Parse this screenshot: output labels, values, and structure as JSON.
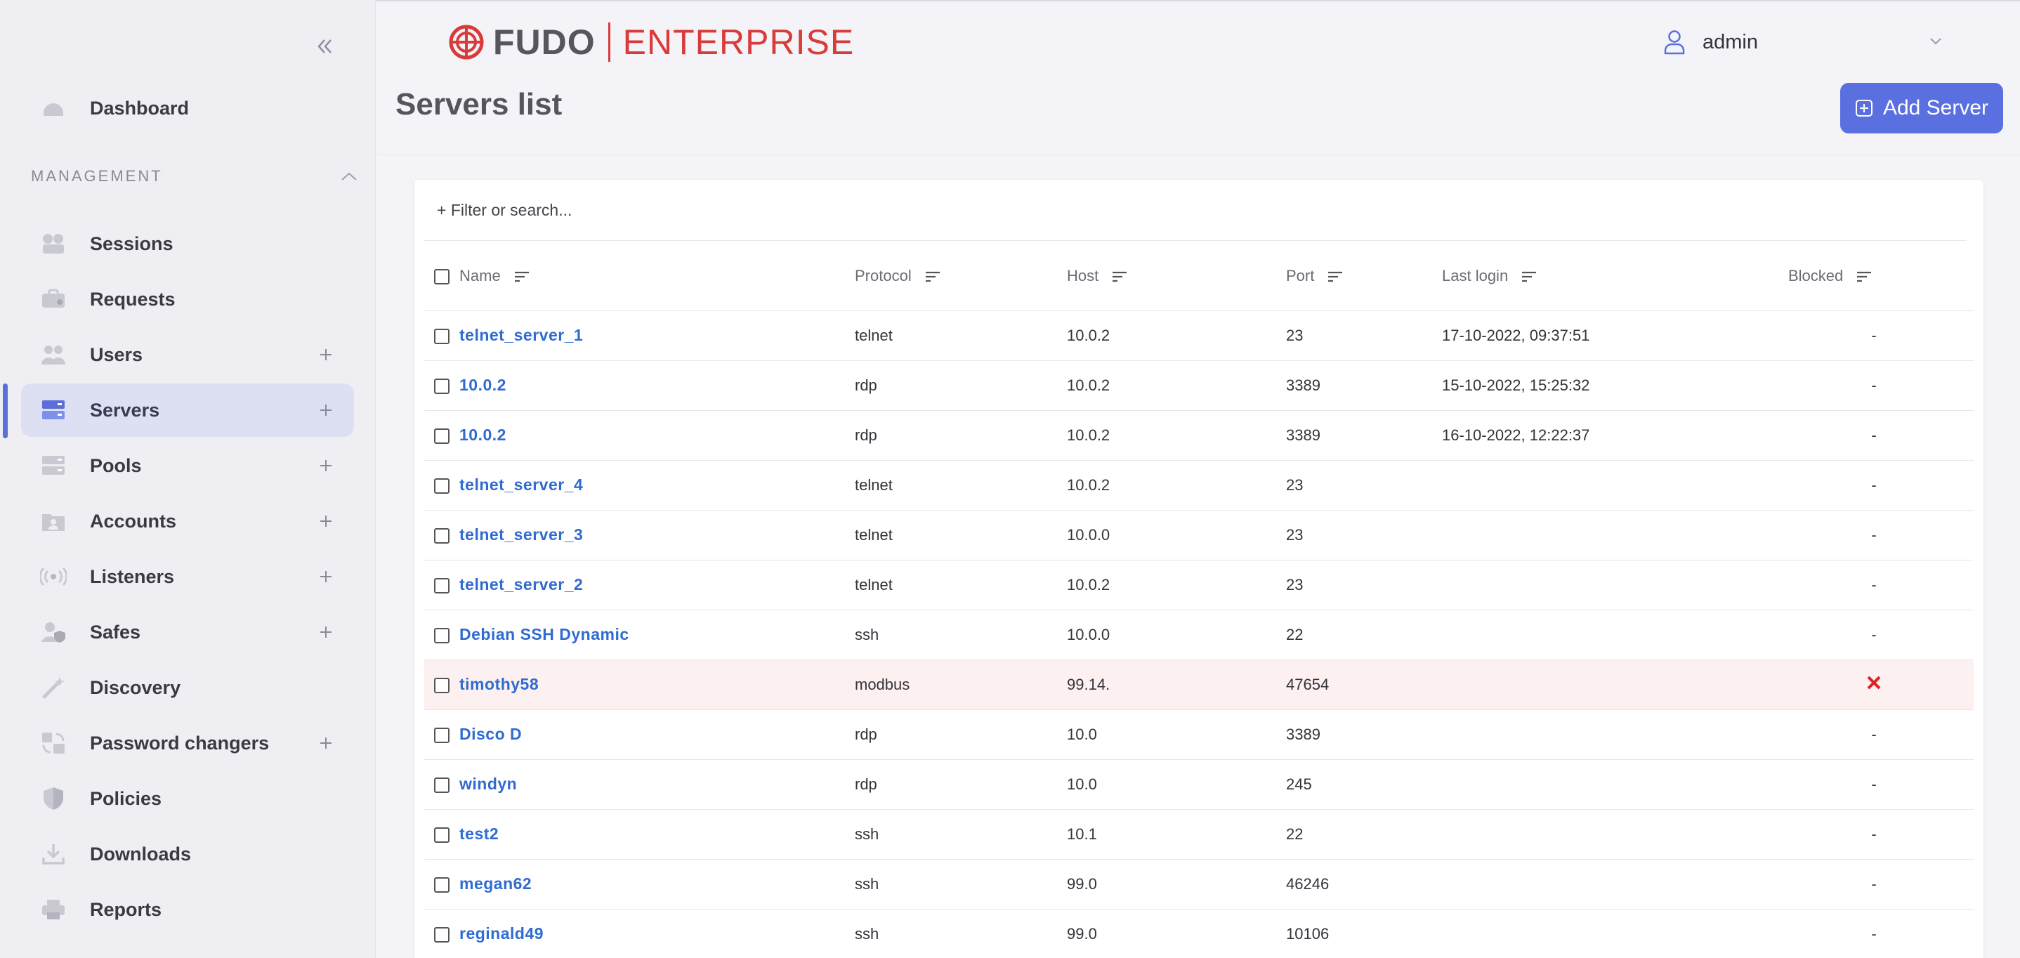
{
  "app": {
    "logo_brand": "FUDO",
    "logo_product": "ENTERPRISE",
    "user_name": "admin"
  },
  "sidebar": {
    "section_label": "MANAGEMENT",
    "items": [
      {
        "label": "Dashboard",
        "icon": "dashboard-icon"
      },
      {
        "label": "Sessions",
        "icon": "sessions-icon"
      },
      {
        "label": "Requests",
        "icon": "requests-icon"
      },
      {
        "label": "Users",
        "icon": "users-icon",
        "plus": true
      },
      {
        "label": "Servers",
        "icon": "servers-icon",
        "plus": true,
        "active": true
      },
      {
        "label": "Pools",
        "icon": "pools-icon",
        "plus": true
      },
      {
        "label": "Accounts",
        "icon": "accounts-icon",
        "plus": true
      },
      {
        "label": "Listeners",
        "icon": "listeners-icon",
        "plus": true
      },
      {
        "label": "Safes",
        "icon": "safes-icon",
        "plus": true
      },
      {
        "label": "Discovery",
        "icon": "discovery-icon"
      },
      {
        "label": "Password changers",
        "icon": "password-changers-icon",
        "plus": true
      },
      {
        "label": "Policies",
        "icon": "policies-icon"
      },
      {
        "label": "Downloads",
        "icon": "downloads-icon"
      },
      {
        "label": "Reports",
        "icon": "reports-icon"
      }
    ]
  },
  "page": {
    "title": "Servers list",
    "add_button_label": "Add Server",
    "filter_placeholder": "+ Filter or search..."
  },
  "table": {
    "columns": [
      "Name",
      "Protocol",
      "Host",
      "Port",
      "Last login",
      "Blocked"
    ],
    "rows": [
      {
        "name": "telnet_server_1",
        "protocol": "telnet",
        "host": "10.0.2",
        "port": "23",
        "last_login": "17-10-2022, 09:37:51",
        "blocked": "-"
      },
      {
        "name": "10.0.2",
        "protocol": "rdp",
        "host": "10.0.2",
        "port": "3389",
        "last_login": "15-10-2022, 15:25:32",
        "blocked": "-"
      },
      {
        "name": "10.0.2",
        "protocol": "rdp",
        "host": "10.0.2",
        "port": "3389",
        "last_login": "16-10-2022, 12:22:37",
        "blocked": "-"
      },
      {
        "name": "telnet_server_4",
        "protocol": "telnet",
        "host": "10.0.2",
        "port": "23",
        "last_login": "",
        "blocked": "-"
      },
      {
        "name": "telnet_server_3",
        "protocol": "telnet",
        "host": "10.0.0",
        "port": "23",
        "last_login": "",
        "blocked": "-"
      },
      {
        "name": "telnet_server_2",
        "protocol": "telnet",
        "host": "10.0.2",
        "port": "23",
        "last_login": "",
        "blocked": "-"
      },
      {
        "name": "Debian SSH Dynamic",
        "protocol": "ssh",
        "host": "10.0.0",
        "port": "22",
        "last_login": "",
        "blocked": "-"
      },
      {
        "name": "timothy58",
        "protocol": "modbus",
        "host": "99.14.",
        "port": "47654",
        "last_login": "",
        "blocked": "x"
      },
      {
        "name": "Disco D",
        "protocol": "rdp",
        "host": "10.0",
        "port": "3389",
        "last_login": "",
        "blocked": "-"
      },
      {
        "name": "windyn",
        "protocol": "rdp",
        "host": "10.0",
        "port": "245",
        "last_login": "",
        "blocked": "-"
      },
      {
        "name": "test2",
        "protocol": "ssh",
        "host": "10.1",
        "port": "22",
        "last_login": "",
        "blocked": "-"
      },
      {
        "name": "megan62",
        "protocol": "ssh",
        "host": "99.0",
        "port": "46246",
        "last_login": "",
        "blocked": "-"
      },
      {
        "name": "reginald49",
        "protocol": "ssh",
        "host": "99.0",
        "port": "10106",
        "last_login": "",
        "blocked": "-"
      }
    ]
  },
  "colors": {
    "accent": "#5a6fe0",
    "brand_red": "#d93a3a",
    "link": "#2f6bd1",
    "blocked_row": "#fdf0f0",
    "blocked_mark": "#e02020"
  }
}
